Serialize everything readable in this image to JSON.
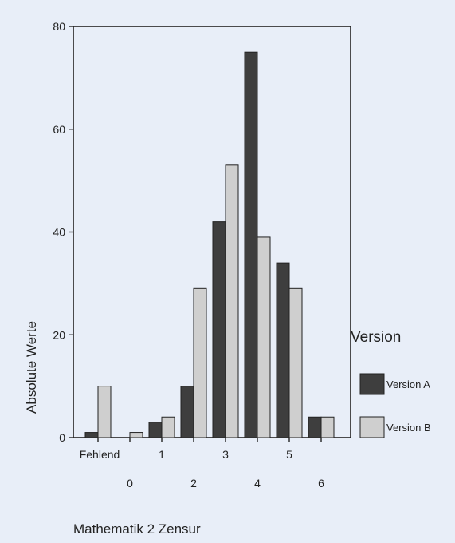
{
  "chart_data": {
    "type": "bar",
    "categories": [
      "Fehlend",
      "0",
      "1",
      "2",
      "3",
      "4",
      "5",
      "6"
    ],
    "series": [
      {
        "name": "Version A",
        "values": [
          1,
          0,
          3,
          10,
          42,
          75,
          34,
          4
        ]
      },
      {
        "name": "Version B",
        "values": [
          10,
          1,
          4,
          29,
          53,
          39,
          29,
          4
        ]
      }
    ],
    "ylim": [
      0,
      80
    ],
    "yticks": [
      0,
      20,
      40,
      60,
      80
    ],
    "xlabel": "Mathematik 2 Zensur",
    "ylabel": "Absolute Werte",
    "legend_title": "Version",
    "legend_position": "right",
    "grid": false,
    "colors": {
      "Version A": "#3e3e3e",
      "Version B": "#cfcfcf"
    }
  }
}
